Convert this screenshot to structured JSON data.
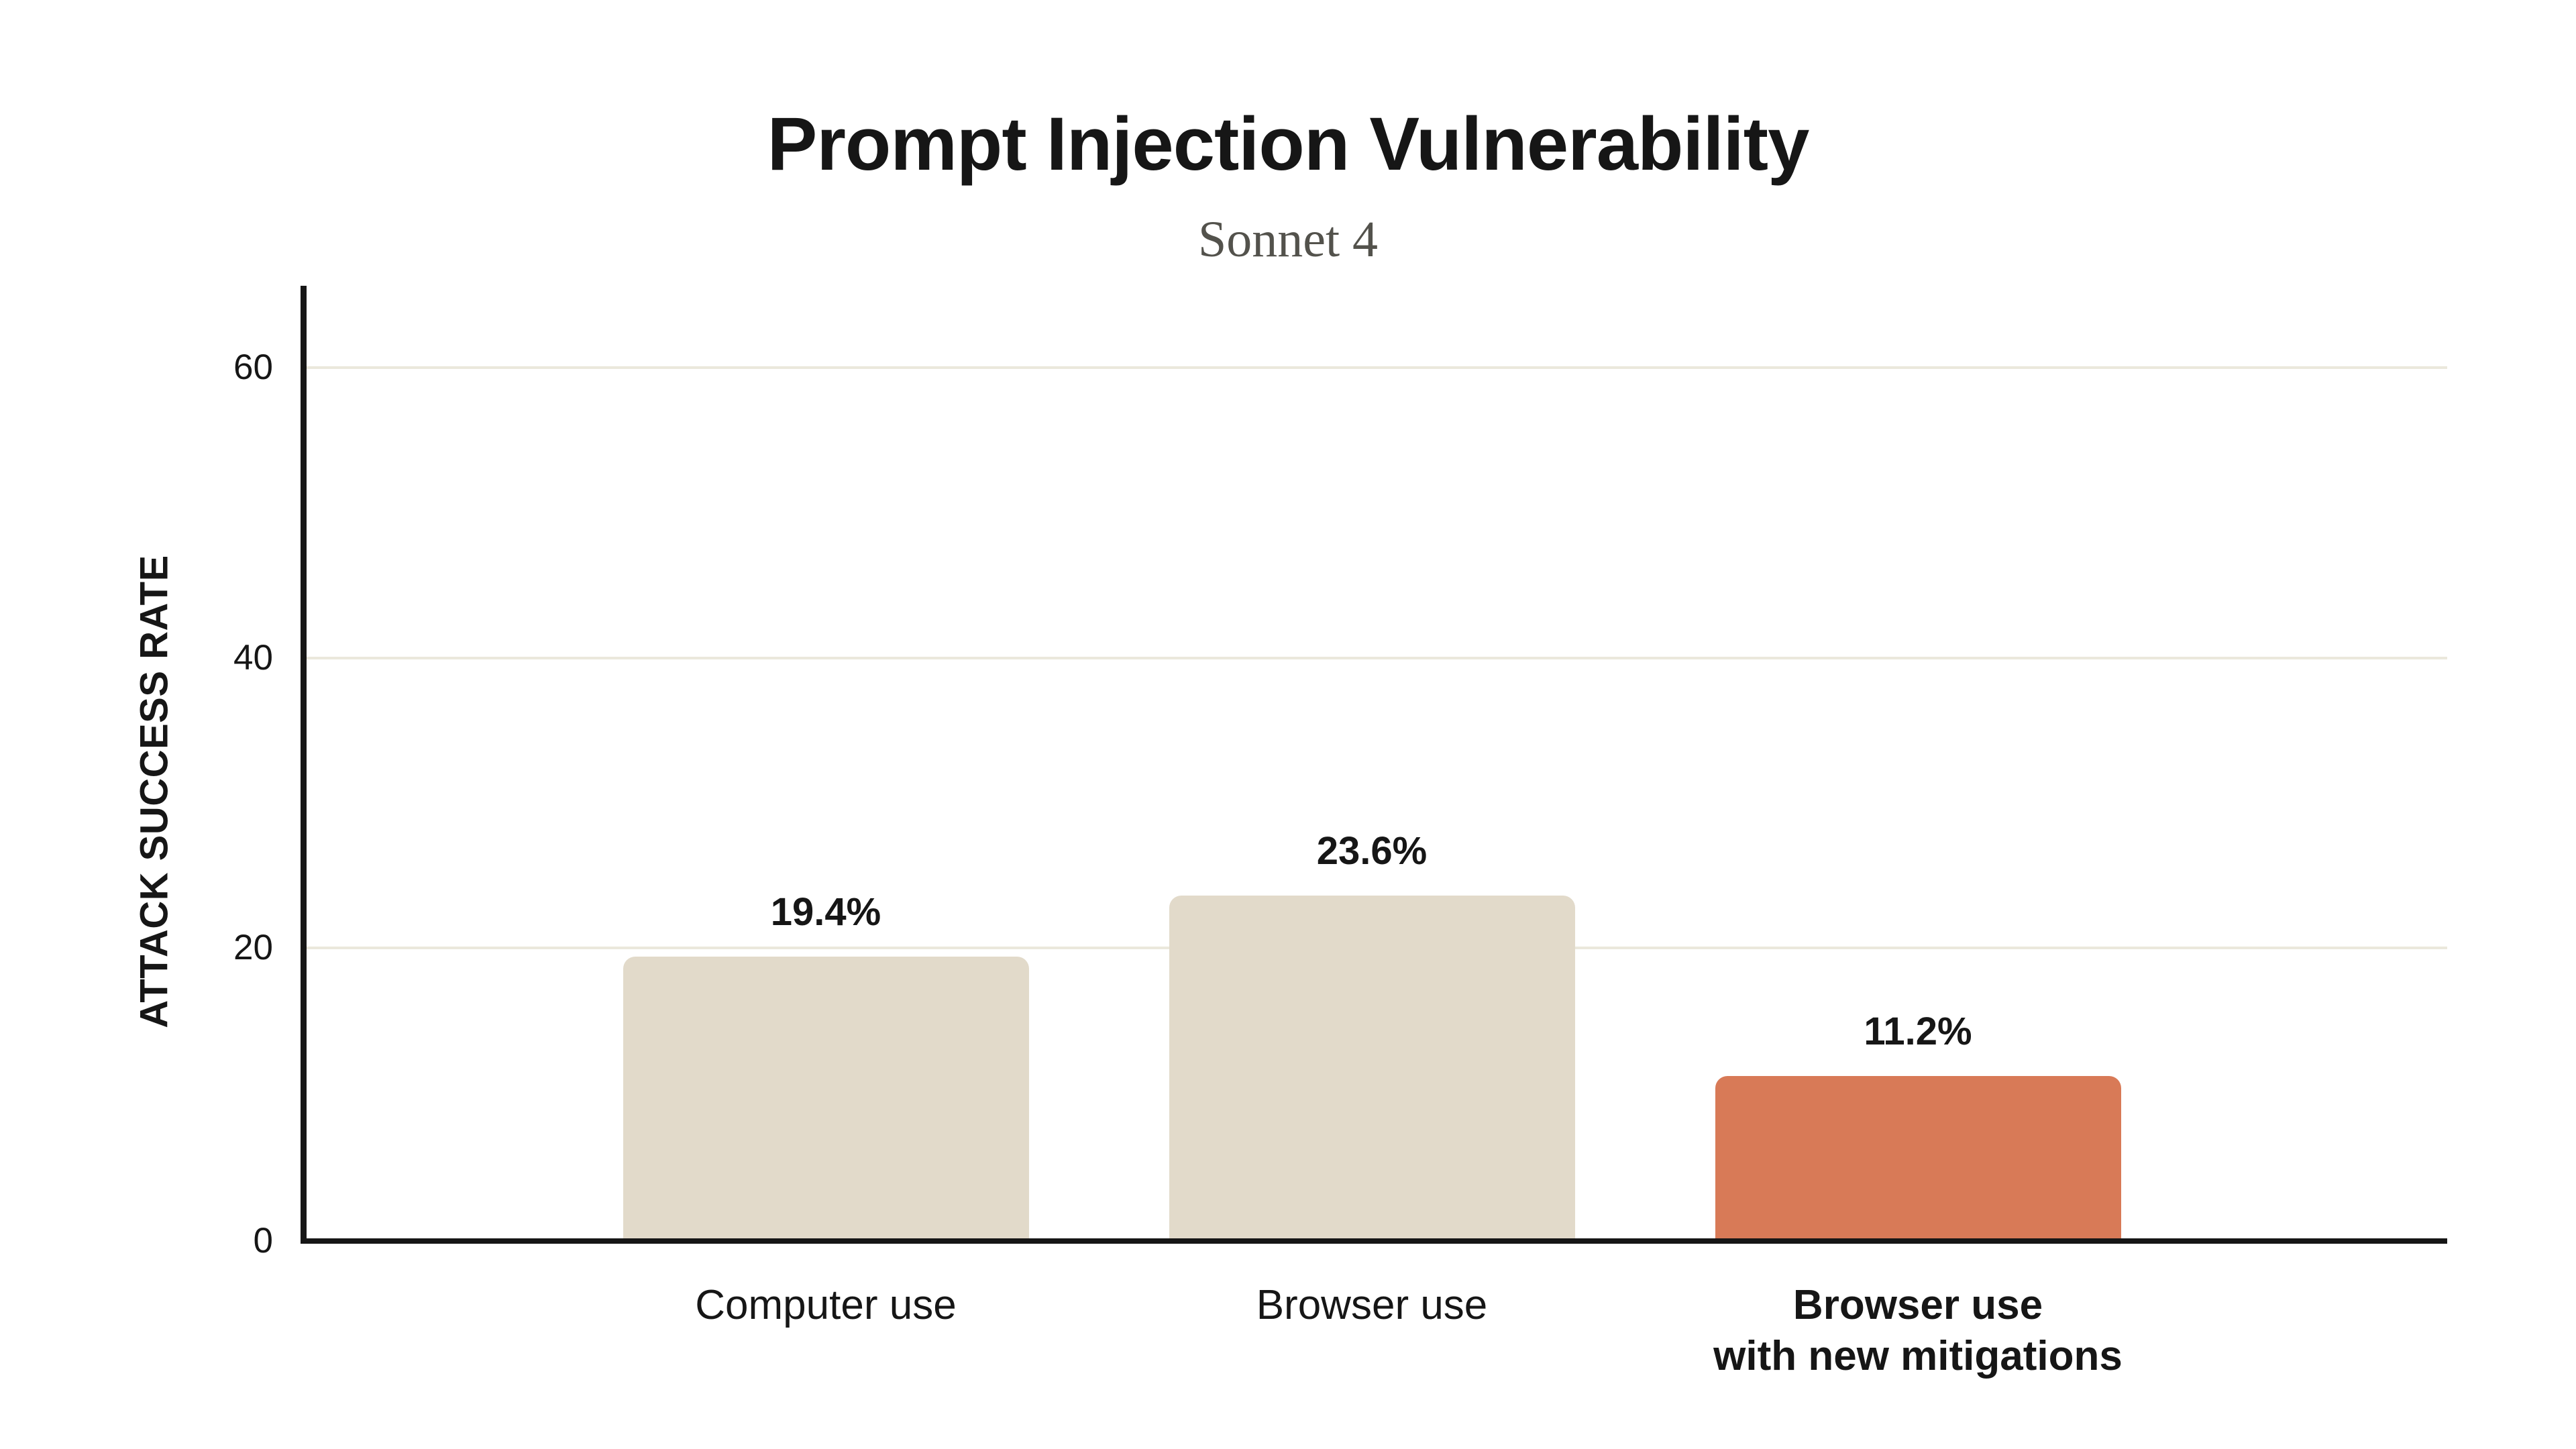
{
  "chart_data": {
    "type": "bar",
    "title": "Prompt Injection Vulnerability",
    "subtitle": "Sonnet 4",
    "ylabel": "ATTACK SUCCESS RATE",
    "xlabel": "",
    "ylim": [
      0,
      65
    ],
    "grid": "horizontal-only",
    "legend": "none",
    "yticks": [
      {
        "value": 0,
        "label": "0"
      },
      {
        "value": 20,
        "label": "20"
      },
      {
        "value": 40,
        "label": "40"
      },
      {
        "value": 60,
        "label": "60"
      }
    ],
    "categories": [
      "Computer use",
      "Browser use",
      "Browser use\nwith new mitigations"
    ],
    "values": [
      19.4,
      23.6,
      11.2
    ],
    "bars": [
      {
        "category": "Computer use",
        "value": 19.4,
        "value_label": "19.4%",
        "color": "#e2daca",
        "category_bold": false
      },
      {
        "category": "Browser use",
        "value": 23.6,
        "value_label": "23.6%",
        "color": "#e2daca",
        "category_bold": false
      },
      {
        "category": "Browser use\nwith new mitigations",
        "value": 11.2,
        "value_label": "11.2%",
        "color": "#d87a57",
        "category_bold": true
      }
    ],
    "colors": {
      "bar_default": "#e2daca",
      "bar_highlight": "#d87a57",
      "axis": "#161616",
      "gridline": "#ebe8dc",
      "title": "#161616",
      "subtitle": "#53524c"
    }
  }
}
